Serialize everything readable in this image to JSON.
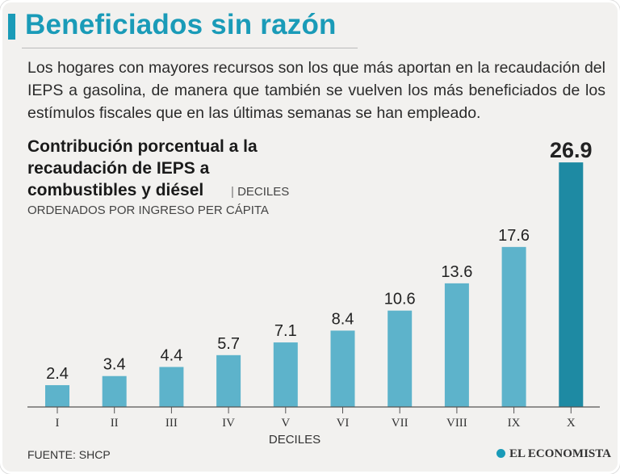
{
  "header": {
    "title": "Beneficiados sin razón",
    "intro": "Los hogares con mayores recursos son los que más aportan en la recaudación del IEPS a gasolina, de manera que también se vuelven los más beneficiados de los estímulos fiscales que en las últimas semanas se han empleado."
  },
  "chart_data": {
    "type": "bar",
    "title": "Contribución porcentual a la recaudación de IEPS a combustibles y diésel",
    "subtitle_sep": "|",
    "subtitle_line1": "DECILES",
    "subtitle_line2": "ORDENADOS POR INGRESO PER CÁPITA",
    "categories": [
      "I",
      "II",
      "III",
      "IV",
      "V",
      "VI",
      "VII",
      "VIII",
      "IX",
      "X"
    ],
    "values": [
      2.4,
      3.4,
      4.4,
      5.7,
      7.1,
      8.4,
      10.6,
      13.6,
      17.6,
      26.9
    ],
    "value_labels": [
      "2.4",
      "3.4",
      "4.4",
      "5.7",
      "7.1",
      "8.4",
      "10.6",
      "13.6",
      "17.6",
      "26.9"
    ],
    "highlight_index": 9,
    "xlabel": "DECILES",
    "ylabel": "",
    "ylim": [
      0,
      27
    ],
    "grid": false,
    "colors": {
      "bar": "#5db3cb",
      "highlight": "#1e8aa3",
      "axis": "#555555"
    }
  },
  "footer": {
    "source": "FUENTE: SHCP",
    "logo_text": "EL ECONOMISTA"
  }
}
